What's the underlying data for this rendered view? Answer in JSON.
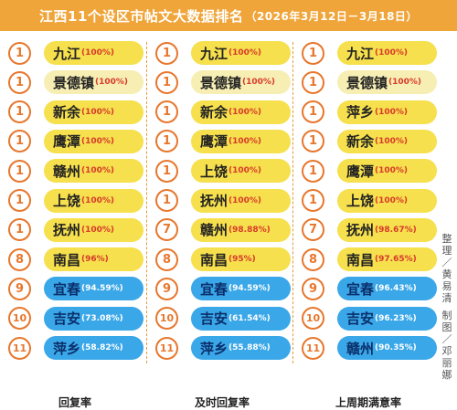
{
  "header": {
    "title": "江西11个设区市帖文大数据排名",
    "period": "（2026年3月12日－3月18日）"
  },
  "colors": {
    "banner": "#f0a53a",
    "rank_ring": "#e7772d",
    "pill_light": "#f7eeb4",
    "pill_yellow": "#f6e04d",
    "pill_blue": "#3aa7e8",
    "percent_red": "#d83a2a"
  },
  "columns": [
    {
      "label": "回复率",
      "rows": [
        {
          "rank": "1",
          "city": "九江",
          "pct": "(100%)",
          "style": "light"
        },
        {
          "rank": "1",
          "city": "景德镇",
          "pct": "(100%)",
          "style": "light"
        },
        {
          "rank": "1",
          "city": "新余",
          "pct": "(100%)",
          "style": "light"
        },
        {
          "rank": "1",
          "city": "鹰潭",
          "pct": "(100%)",
          "style": "light"
        },
        {
          "rank": "1",
          "city": "赣州",
          "pct": "(100%)",
          "style": "light"
        },
        {
          "rank": "1",
          "city": "上饶",
          "pct": "(100%)",
          "style": "light"
        },
        {
          "rank": "1",
          "city": "抚州",
          "pct": "(100%)",
          "style": "light"
        },
        {
          "rank": "8",
          "city": "南昌",
          "pct": "(96%)",
          "style": "light"
        },
        {
          "rank": "9",
          "city": "宜春",
          "pct": "(94.59%)",
          "style": "blue"
        },
        {
          "rank": "10",
          "city": "吉安",
          "pct": "(73.08%)",
          "style": "blue"
        },
        {
          "rank": "11",
          "city": "萍乡",
          "pct": "(58.82%)",
          "style": "blue"
        }
      ]
    },
    {
      "label": "及时回复率",
      "rows": [
        {
          "rank": "1",
          "city": "九江",
          "pct": "(100%)",
          "style": "light"
        },
        {
          "rank": "1",
          "city": "景德镇",
          "pct": "(100%)",
          "style": "light"
        },
        {
          "rank": "1",
          "city": "新余",
          "pct": "(100%)",
          "style": "light"
        },
        {
          "rank": "1",
          "city": "鹰潭",
          "pct": "(100%)",
          "style": "light"
        },
        {
          "rank": "1",
          "city": "上饶",
          "pct": "(100%)",
          "style": "light"
        },
        {
          "rank": "1",
          "city": "抚州",
          "pct": "(100%)",
          "style": "light"
        },
        {
          "rank": "7",
          "city": "赣州",
          "pct": "(98.88%)",
          "style": "light"
        },
        {
          "rank": "8",
          "city": "南昌",
          "pct": "(95%)",
          "style": "light"
        },
        {
          "rank": "9",
          "city": "宜春",
          "pct": "(94.59%)",
          "style": "blue"
        },
        {
          "rank": "10",
          "city": "吉安",
          "pct": "(61.54%)",
          "style": "blue"
        },
        {
          "rank": "11",
          "city": "萍乡",
          "pct": "(55.88%)",
          "style": "blue"
        }
      ]
    },
    {
      "label": "上周期满意率",
      "rows": [
        {
          "rank": "1",
          "city": "九江",
          "pct": "(100%)",
          "style": "light"
        },
        {
          "rank": "1",
          "city": "景德镇",
          "pct": "(100%)",
          "style": "light"
        },
        {
          "rank": "1",
          "city": "萍乡",
          "pct": "(100%)",
          "style": "light"
        },
        {
          "rank": "1",
          "city": "新余",
          "pct": "(100%)",
          "style": "light"
        },
        {
          "rank": "1",
          "city": "鹰潭",
          "pct": "(100%)",
          "style": "light"
        },
        {
          "rank": "1",
          "city": "上饶",
          "pct": "(100%)",
          "style": "light"
        },
        {
          "rank": "7",
          "city": "抚州",
          "pct": "(98.67%)",
          "style": "light"
        },
        {
          "rank": "8",
          "city": "南昌",
          "pct": "(97.65%)",
          "style": "light"
        },
        {
          "rank": "9",
          "city": "宜春",
          "pct": "(96.43%)",
          "style": "blue"
        },
        {
          "rank": "10",
          "city": "吉安",
          "pct": "(96.23%)",
          "style": "blue"
        },
        {
          "rank": "11",
          "city": "赣州",
          "pct": "(90.35%)",
          "style": "blue"
        }
      ]
    }
  ],
  "credits": {
    "organizer": "整理／黄易清",
    "designer": "制图／邓丽娜"
  }
}
